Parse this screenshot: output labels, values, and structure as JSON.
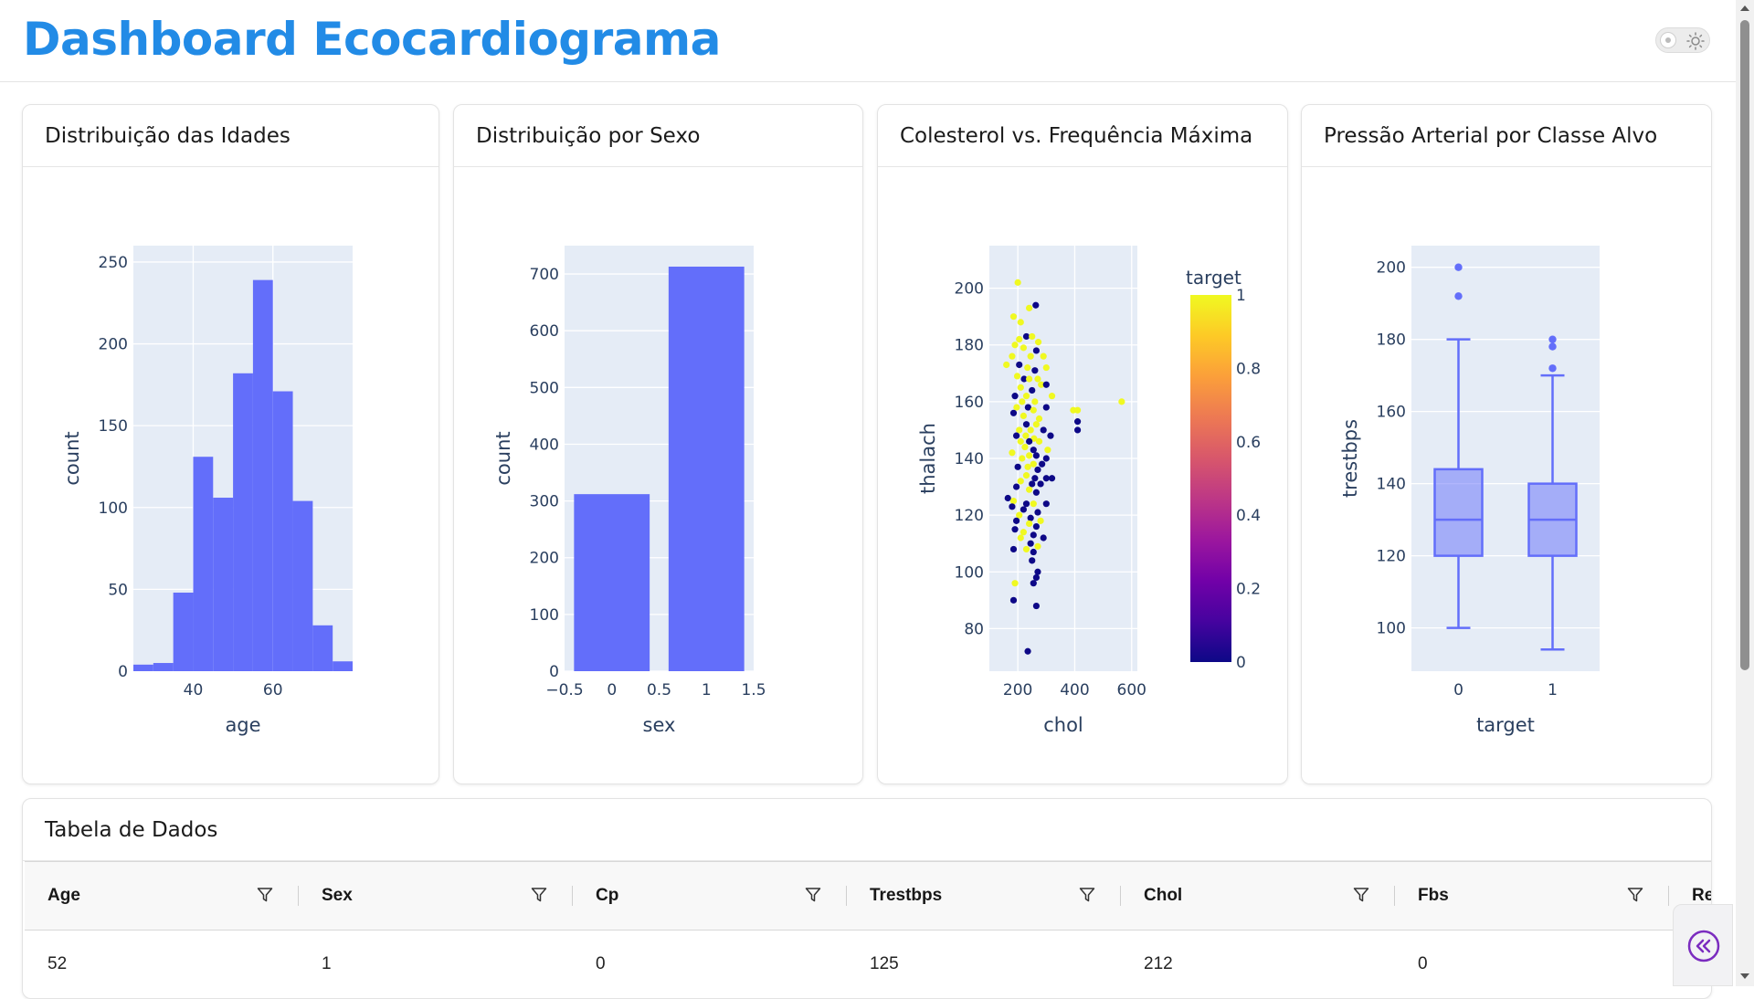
{
  "header": {
    "title": "Dashboard Ecocardiograma"
  },
  "theme_toggle": {
    "icon": "sun-icon"
  },
  "colors": {
    "title": "#228be6",
    "bar": "#636efa",
    "plot_bg": "#e5ecf6",
    "colorscale": [
      "#0d0887",
      "#46039f",
      "#7201a8",
      "#9c179e",
      "#bd3786",
      "#d8576b",
      "#ed7953",
      "#fb9f3a",
      "#fdca26",
      "#f0f921"
    ]
  },
  "cards": {
    "age": {
      "title": "Distribuição das Idades"
    },
    "sex": {
      "title": "Distribuição por Sexo"
    },
    "chol": {
      "title": "Colesterol vs. Frequência Máxima"
    },
    "bp": {
      "title": "Pressão Arterial por Classe Alvo"
    },
    "table": {
      "title": "Tabela de Dados"
    }
  },
  "chart_data": [
    {
      "type": "bar",
      "subtype": "histogram",
      "xlabel": "age",
      "ylabel": "count",
      "bin_width": 5,
      "x": [
        27.5,
        32.5,
        37.5,
        42.5,
        47.5,
        52.5,
        57.5,
        62.5,
        67.5,
        72.5,
        77.5
      ],
      "values": [
        4,
        5,
        48,
        131,
        106,
        182,
        239,
        171,
        104,
        28,
        6
      ],
      "xlim": [
        25,
        80
      ],
      "ylim": [
        0,
        260
      ],
      "xticks": [
        40,
        60
      ],
      "yticks": [
        0,
        50,
        100,
        150,
        200,
        250
      ],
      "grid": true
    },
    {
      "type": "bar",
      "xlabel": "sex",
      "ylabel": "count",
      "x": [
        0,
        1
      ],
      "values": [
        312,
        713
      ],
      "xlim": [
        -0.5,
        1.5
      ],
      "ylim": [
        0,
        750
      ],
      "xticks": [
        "−0.5",
        "0",
        "0.5",
        "1",
        "1.5"
      ],
      "yticks": [
        0,
        100,
        200,
        300,
        400,
        500,
        600,
        700
      ],
      "grid": true
    },
    {
      "type": "scatter",
      "xlabel": "chol",
      "ylabel": "thalach",
      "colorbar_title": "target",
      "colorbar_ticks": [
        0,
        0.2,
        0.4,
        0.6,
        0.8,
        1
      ],
      "xlim": [
        100,
        620
      ],
      "ylim": [
        65,
        215
      ],
      "xticks": [
        200,
        400,
        600
      ],
      "yticks": [
        80,
        100,
        120,
        140,
        160,
        180,
        200
      ],
      "grid": true,
      "points": [
        [
          200,
          202,
          1
        ],
        [
          263,
          194,
          0
        ],
        [
          240,
          193,
          1
        ],
        [
          185,
          190,
          1
        ],
        [
          210,
          188,
          1
        ],
        [
          230,
          183,
          0
        ],
        [
          205,
          182,
          1
        ],
        [
          250,
          183,
          1
        ],
        [
          272,
          181,
          1
        ],
        [
          190,
          180,
          1
        ],
        [
          220,
          179,
          1
        ],
        [
          265,
          178,
          0
        ],
        [
          180,
          176,
          1
        ],
        [
          245,
          176,
          1
        ],
        [
          290,
          176,
          1
        ],
        [
          160,
          173,
          1
        ],
        [
          205,
          173,
          0
        ],
        [
          234,
          172,
          1
        ],
        [
          260,
          171,
          0
        ],
        [
          300,
          172,
          1
        ],
        [
          198,
          169,
          1
        ],
        [
          222,
          168,
          0
        ],
        [
          240,
          168,
          1
        ],
        [
          270,
          168,
          1
        ],
        [
          282,
          166,
          1
        ],
        [
          300,
          166,
          0
        ],
        [
          210,
          165,
          1
        ],
        [
          250,
          164,
          0
        ],
        [
          230,
          162,
          1
        ],
        [
          320,
          162,
          1
        ],
        [
          190,
          162,
          0
        ],
        [
          215,
          160,
          1
        ],
        [
          260,
          160,
          1
        ],
        [
          196,
          158,
          1
        ],
        [
          236,
          158,
          0
        ],
        [
          255,
          157,
          1
        ],
        [
          300,
          158,
          0
        ],
        [
          395,
          157,
          1
        ],
        [
          410,
          157,
          1
        ],
        [
          565,
          160,
          1
        ],
        [
          185,
          156,
          0
        ],
        [
          220,
          155,
          1
        ],
        [
          275,
          154,
          1
        ],
        [
          230,
          152,
          0
        ],
        [
          265,
          152,
          1
        ],
        [
          410,
          153,
          0
        ],
        [
          205,
          150,
          1
        ],
        [
          245,
          150,
          1
        ],
        [
          290,
          150,
          0
        ],
        [
          410,
          150,
          0
        ],
        [
          195,
          148,
          0
        ],
        [
          228,
          148,
          1
        ],
        [
          257,
          147,
          1
        ],
        [
          315,
          148,
          0
        ],
        [
          210,
          146,
          1
        ],
        [
          240,
          146,
          0
        ],
        [
          275,
          146,
          1
        ],
        [
          225,
          144,
          1
        ],
        [
          255,
          143,
          0
        ],
        [
          305,
          143,
          1
        ],
        [
          180,
          142,
          1
        ],
        [
          240,
          141,
          1
        ],
        [
          265,
          141,
          0
        ],
        [
          300,
          140,
          0
        ],
        [
          215,
          140,
          1
        ],
        [
          255,
          138,
          1
        ],
        [
          285,
          138,
          0
        ],
        [
          200,
          137,
          0
        ],
        [
          235,
          137,
          1
        ],
        [
          270,
          136,
          0
        ],
        [
          230,
          134,
          1
        ],
        [
          260,
          133,
          0
        ],
        [
          300,
          133,
          0
        ],
        [
          320,
          133,
          0
        ],
        [
          210,
          132,
          1
        ],
        [
          250,
          131,
          0
        ],
        [
          280,
          131,
          0
        ],
        [
          195,
          130,
          0
        ],
        [
          240,
          129,
          1
        ],
        [
          265,
          128,
          0
        ],
        [
          165,
          126,
          0
        ],
        [
          185,
          125,
          1
        ],
        [
          230,
          124,
          0
        ],
        [
          255,
          124,
          1
        ],
        [
          300,
          124,
          0
        ],
        [
          180,
          123,
          0
        ],
        [
          220,
          122,
          0
        ],
        [
          270,
          121,
          0
        ],
        [
          205,
          120,
          1
        ],
        [
          245,
          119,
          0
        ],
        [
          280,
          118,
          1
        ],
        [
          195,
          118,
          0
        ],
        [
          240,
          117,
          1
        ],
        [
          265,
          116,
          0
        ],
        [
          190,
          115,
          0
        ],
        [
          220,
          114,
          1
        ],
        [
          255,
          113,
          0
        ],
        [
          290,
          112,
          0
        ],
        [
          210,
          112,
          1
        ],
        [
          245,
          110,
          0
        ],
        [
          270,
          109,
          1
        ],
        [
          185,
          108,
          0
        ],
        [
          230,
          108,
          1
        ],
        [
          255,
          107,
          0
        ],
        [
          250,
          104,
          0
        ],
        [
          270,
          100,
          0
        ],
        [
          265,
          98,
          0
        ],
        [
          190,
          96,
          1
        ],
        [
          255,
          96,
          0
        ],
        [
          185,
          90,
          0
        ],
        [
          265,
          88,
          0
        ],
        [
          235,
          72,
          0
        ]
      ]
    },
    {
      "type": "box",
      "xlabel": "target",
      "ylabel": "trestbps",
      "categories": [
        "0",
        "1"
      ],
      "ylim": [
        88,
        206
      ],
      "yticks": [
        100,
        120,
        140,
        160,
        180,
        200
      ],
      "grid": true,
      "boxes": [
        {
          "category": "0",
          "min": 100,
          "q1": 120,
          "median": 130,
          "q3": 144,
          "max": 180,
          "outliers": [
            192,
            200
          ]
        },
        {
          "category": "1",
          "min": 94,
          "q1": 120,
          "median": 130,
          "q3": 140,
          "max": 170,
          "outliers": [
            172,
            178,
            180
          ]
        }
      ]
    }
  ],
  "table": {
    "columns": [
      "Age",
      "Sex",
      "Cp",
      "Trestbps",
      "Chol",
      "Fbs",
      "Re"
    ],
    "rows": [
      [
        "52",
        "1",
        "0",
        "125",
        "212",
        "0",
        ""
      ]
    ]
  },
  "scrollbar": {
    "position_fraction": 0.0
  },
  "fab": {
    "icon": "chevrons-left-icon"
  }
}
